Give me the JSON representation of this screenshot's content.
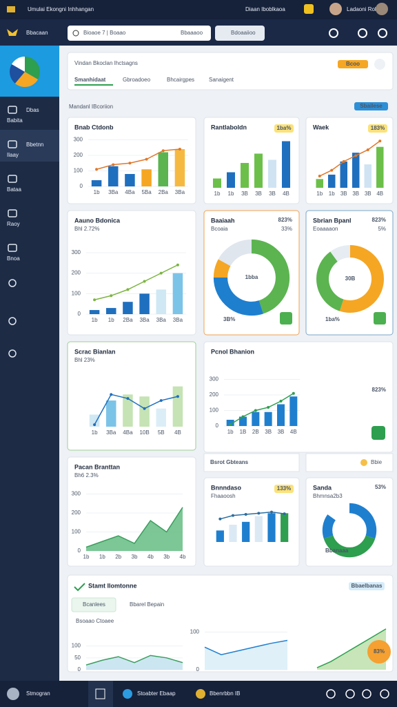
{
  "topbar": {
    "title": "Umulai Ekongni Inhhangan",
    "status": "Diaan Iboblkaoa",
    "user": "Ladaoni Rollo"
  },
  "navbar": {
    "brand": "Bbacaan",
    "search": "Bioaoe 7 | Boaao",
    "search_button": "Bbaaaoo",
    "action": "Bdoaaiioo"
  },
  "sidebar": {
    "items": [
      {
        "label": "Dbas",
        "sub": "Babita"
      },
      {
        "label": "Bbetnn",
        "sub": "Ilaay"
      },
      {
        "label": "Bataa"
      },
      {
        "label": "Raoy"
      },
      {
        "label": "Bnoa"
      }
    ]
  },
  "header": {
    "title": "Vindan Bkoclan Ihctsagns",
    "badge": "Bcoo",
    "tabs": [
      "Smanhidaat",
      "Gbroadoeo",
      "Bhcairgpes",
      "Sanaigent"
    ]
  },
  "section": {
    "title": "Mandanl IBcoriion",
    "button": "Sbailese"
  },
  "charts": [
    {
      "type": "bar",
      "title": "Bnab Ctdonb",
      "categories": [
        "1b",
        "3Ba",
        "4Ba",
        "5Ba",
        "2Ba",
        "3Ba"
      ],
      "values": [
        40,
        130,
        80,
        110,
        220,
        240
      ],
      "colors": [
        "#1f6fbf",
        "#1f6fbf",
        "#1f6fbf",
        "#f5a623",
        "#5bb450",
        "#f5b942"
      ],
      "line": {
        "values": [
          110,
          140,
          150,
          175,
          230,
          240
        ],
        "color": "#e0782a"
      },
      "ylim": [
        0,
        320
      ],
      "yticks": [
        0,
        100,
        200,
        300
      ]
    },
    {
      "type": "bar",
      "title": "Rantlaboldn",
      "badge": "1ba%",
      "categories": [
        "1b",
        "1b",
        "3B",
        "3B",
        "3B",
        "4B"
      ],
      "values": [
        30,
        50,
        80,
        110,
        90,
        150
      ],
      "colors": [
        "#6cc04a",
        "#1f6fbf",
        "#6cc04a",
        "#6cc04a",
        "#cfe3f3",
        "#1f6fbf"
      ],
      "ylim": [
        0,
        160
      ]
    },
    {
      "type": "bar",
      "title": "Waek",
      "badge": "183%",
      "categories": [
        "1b",
        "1b",
        "3B",
        "3B",
        "3B",
        "4B"
      ],
      "values": [
        30,
        45,
        90,
        120,
        80,
        140
      ],
      "colors": [
        "#6cc04a",
        "#1f6fbf",
        "#1f6fbf",
        "#1f6fbf",
        "#cfe3f3",
        "#6cc04a"
      ],
      "line": {
        "values": [
          40,
          60,
          90,
          110,
          130,
          160
        ],
        "color": "#e0782a"
      },
      "ylim": [
        0,
        170
      ]
    },
    {
      "type": "bar",
      "title": "Aauno Bdonica",
      "subtitle": "Bhl 2.72%",
      "categories": [
        "1b",
        "1b",
        "2Ba",
        "3Ba",
        "3Ba",
        "3Ba"
      ],
      "values": [
        20,
        30,
        60,
        100,
        120,
        200
      ],
      "colors": [
        "#1f6fbf",
        "#1f6fbf",
        "#1f6fbf",
        "#1f6fbf",
        "#cfe8f3",
        "#7cc3e8"
      ],
      "line": {
        "values": [
          70,
          90,
          120,
          160,
          200,
          240
        ],
        "color": "#7bb540"
      },
      "ylim": [
        0,
        320
      ],
      "yticks": [
        0,
        100,
        200,
        300
      ]
    },
    {
      "type": "donut",
      "title": "Baaiaah",
      "subtitle": "Bcoaia",
      "value": "823%",
      "badge": "33%",
      "center": "1bba",
      "foot": "3B%",
      "values": [
        45,
        30,
        8,
        17
      ],
      "colors": [
        "#5bb450",
        "#1f7fcf",
        "#f5a623",
        "#dfe6ee"
      ]
    },
    {
      "type": "donut",
      "title": "Sbrian Bpanl",
      "subtitle": "Eoaaaaon",
      "value": "823%",
      "badge": "5%",
      "center": "30B",
      "foot": "1ba%",
      "values": [
        55,
        35,
        10
      ],
      "colors": [
        "#f5a623",
        "#5bb450",
        "#e6ecf2"
      ]
    },
    {
      "type": "bar",
      "title": "Scrac Bianlan",
      "subtitle": "Bhl 23%",
      "categories": [
        "1b",
        "3Ba",
        "4Ba",
        "10B",
        "5B",
        "4B"
      ],
      "values": [
        60,
        130,
        160,
        150,
        90,
        200
      ],
      "colors": [
        "#cfe8f3",
        "#7cc3e8",
        "#c5e3b4",
        "#c5e3b4",
        "#dbeef7",
        "#c5e3b4"
      ],
      "line": {
        "values": [
          10,
          160,
          140,
          90,
          130,
          150
        ],
        "color": "#1f6fbf"
      },
      "ylim": [
        0,
        240
      ]
    },
    {
      "type": "bar",
      "title": "Pcnol Bhanion",
      "value": "823%",
      "categories": [
        "1b",
        "1B",
        "2B",
        "3B",
        "3B",
        "4B"
      ],
      "values": [
        40,
        60,
        90,
        90,
        140,
        190
      ],
      "colors": [
        "#1f7fcf",
        "#1f7fcf",
        "#1f7fcf",
        "#1f7fcf",
        "#1f7fcf",
        "#1f7fcf"
      ],
      "line": {
        "values": [
          10,
          60,
          100,
          120,
          160,
          210
        ],
        "color": "#2e9e4f"
      },
      "ylim": [
        0,
        320
      ],
      "yticks": [
        0,
        100,
        200,
        300
      ]
    },
    {
      "type": "area",
      "title": "Pacan Branttan",
      "subtitle": "Bh6 2.3%",
      "categories": [
        "1b",
        "1b",
        "2b",
        "3b",
        "4b",
        "3b",
        "4b"
      ],
      "values": [
        20,
        50,
        80,
        40,
        160,
        100,
        230
      ],
      "color": "#5bb97a",
      "ylim": [
        0,
        320
      ],
      "yticks": [
        0,
        100,
        200,
        300
      ]
    },
    {
      "type": "bar",
      "title": "Bnnndaso",
      "subtitle": "Fhaaoosh",
      "badge": "133%",
      "values": [
        40,
        60,
        70,
        90,
        100,
        100
      ],
      "colors": [
        "#1f7fcf",
        "#dbe9f5",
        "#1f7fcf",
        "#dbe9f5",
        "#1f7fcf",
        "#2e9e4f"
      ],
      "line": {
        "values": [
          80,
          92,
          96,
          100,
          104,
          98
        ],
        "color": "#2c6da0"
      },
      "ylim": [
        0,
        120
      ]
    },
    {
      "type": "donut",
      "title": "Sanda",
      "subtitle": "Bhmnsa2b3",
      "value": "53%",
      "foot": "Bbanaaa",
      "values": [
        30,
        40,
        15,
        15
      ],
      "colors": [
        "#1f7fcf",
        "#2e9e4f",
        "#1f7fcf",
        "#ffffff"
      ]
    },
    {
      "type": "area",
      "title": "Bsoaao Ctoaee",
      "values": [
        20,
        40,
        55,
        30,
        60,
        50,
        30
      ],
      "color": "#bfe0ee",
      "ylim": [
        0,
        160
      ],
      "yticks": [
        0,
        50,
        100
      ]
    },
    {
      "type": "area",
      "values": [
        60,
        40,
        50,
        60,
        70,
        78
      ],
      "color": "#d7ecf7",
      "line_color": "#1f7fcf",
      "ylim": [
        0,
        110
      ],
      "yticks": [
        0,
        100
      ]
    },
    {
      "type": "area",
      "values": [
        5,
        20,
        40,
        60,
        80,
        100
      ],
      "color": "#b9dea6",
      "line_color": "#2e9e4f",
      "ylim": [
        0,
        110
      ]
    }
  ],
  "bottom": {
    "title": "Stamt Ilomtonne",
    "badge": "Bbaelbanas",
    "tabs": [
      "Bcanlees",
      "Bbarel Bepain"
    ],
    "float": "83%",
    "dropdown": "Bsrot Gbteans",
    "dropdown_side": "Bbie"
  },
  "footer": {
    "user": "Stmogran",
    "items": [
      "Stoabter Ebaap",
      "Bbenrbbn IB"
    ]
  }
}
